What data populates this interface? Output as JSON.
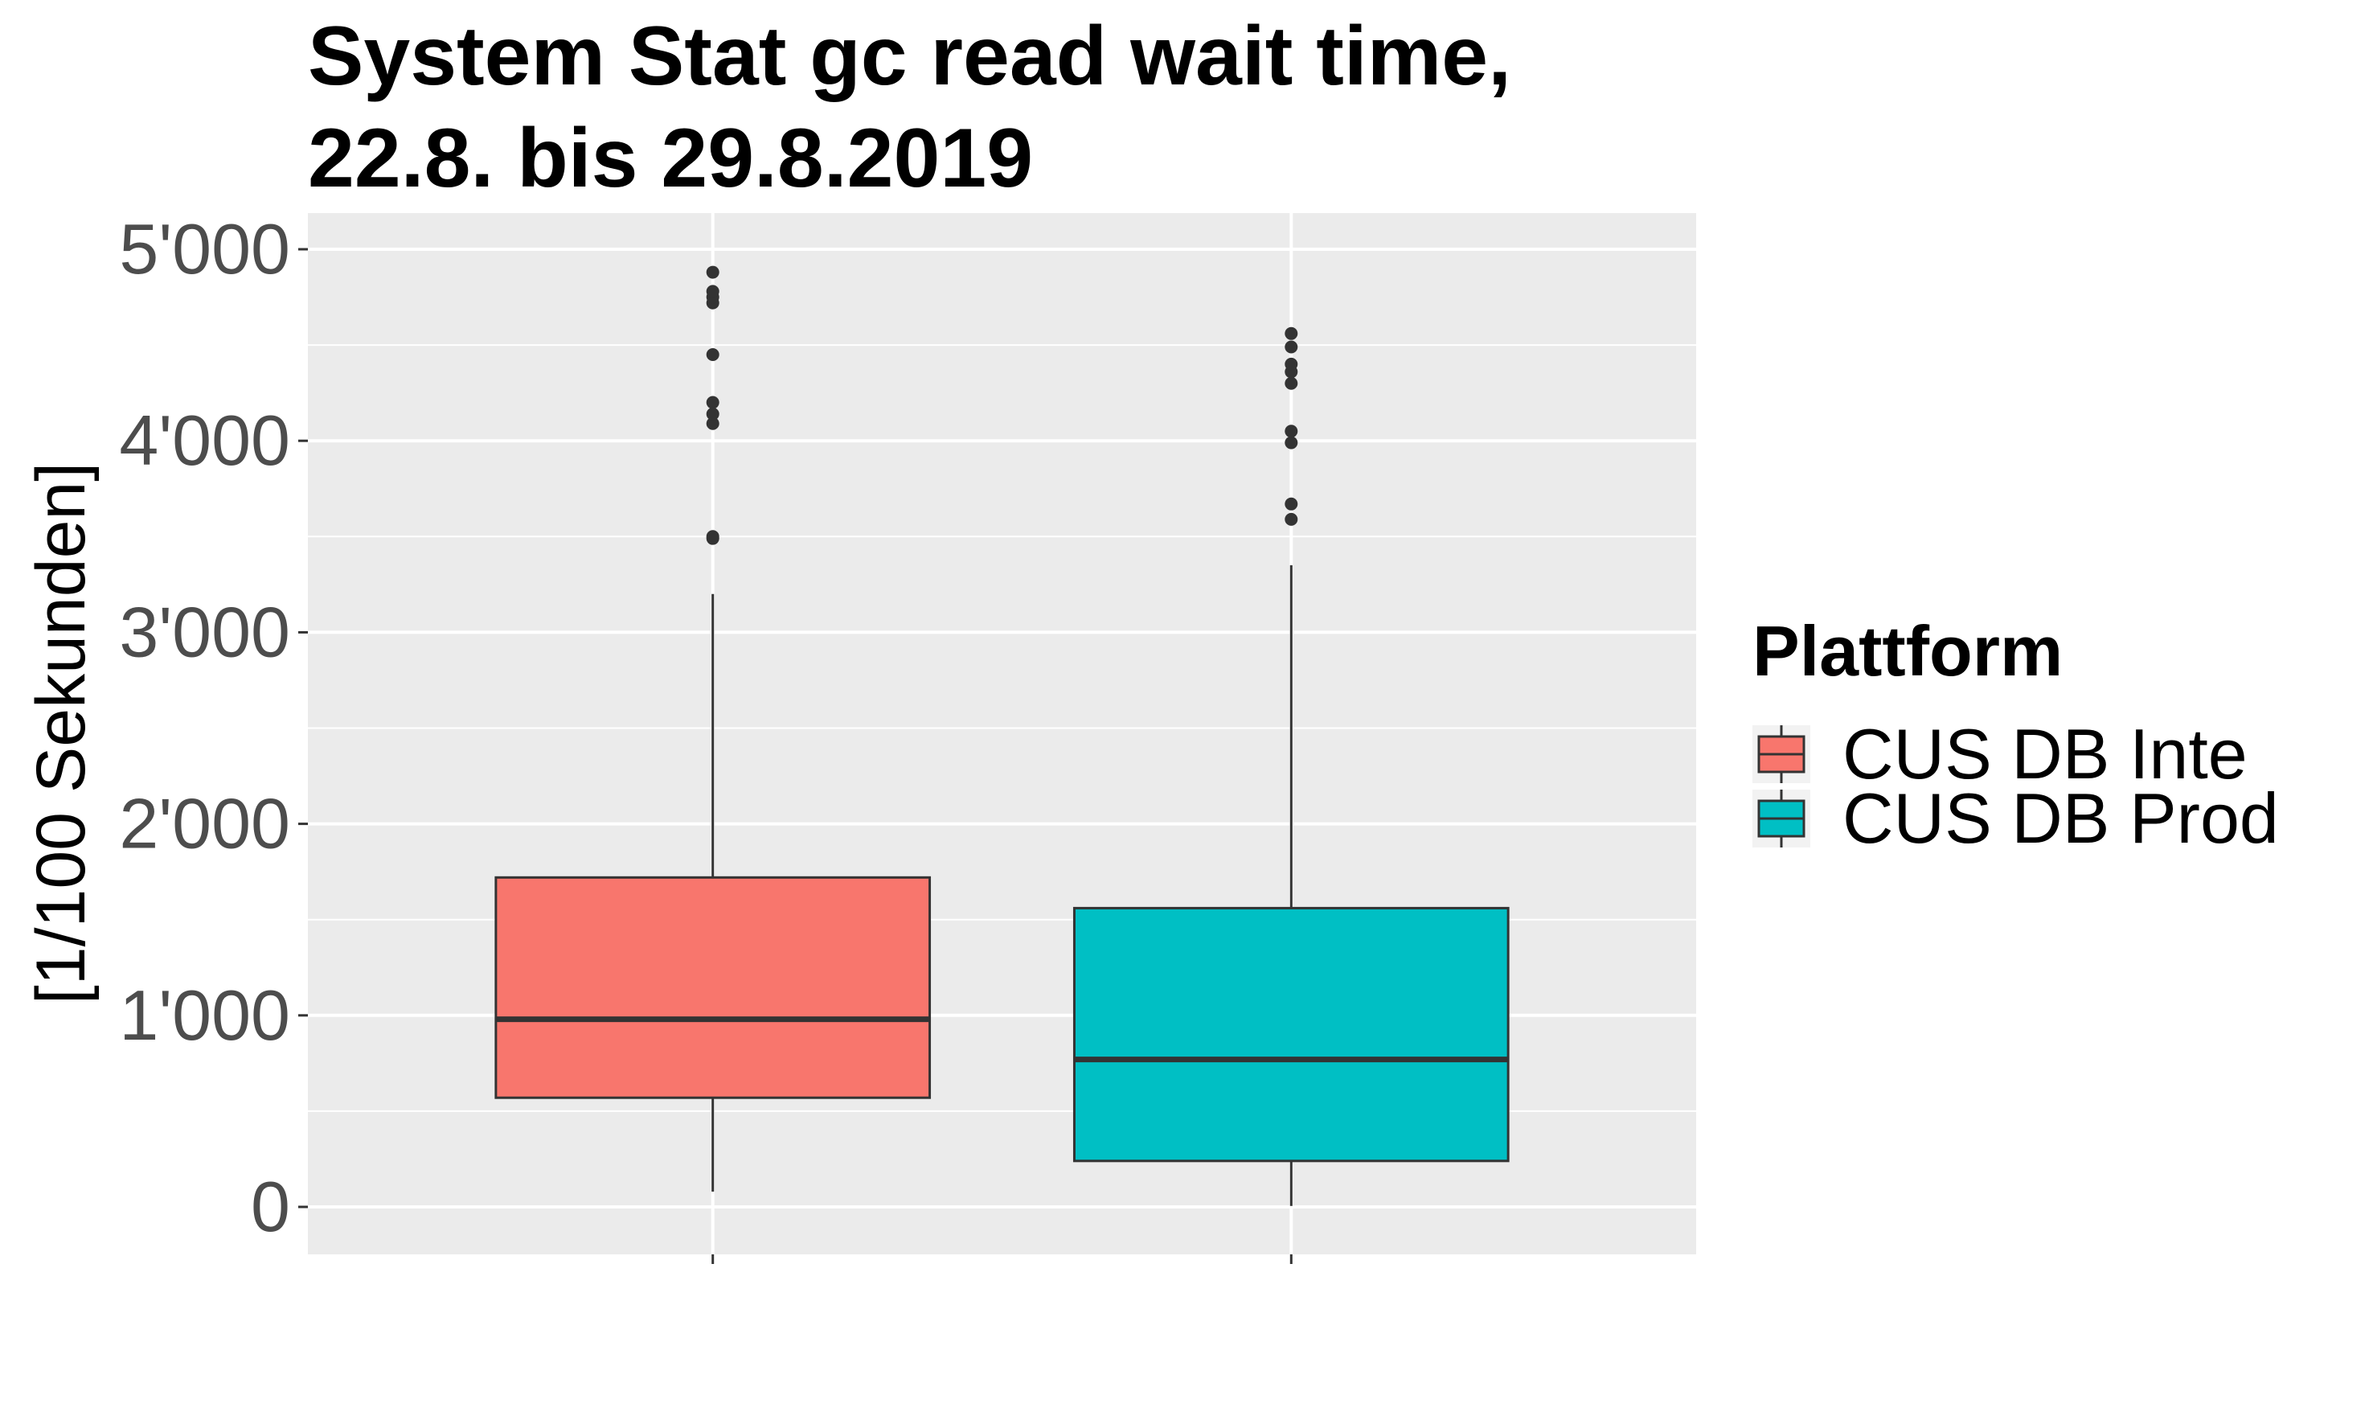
{
  "chart_data": {
    "type": "box",
    "title_lines": [
      "System Stat gc read wait time,",
      "22.8. bis 29.8.2019"
    ],
    "xlabel": "",
    "ylabel": "[1/100 Sekunden]",
    "ylim": [
      -250,
      5200
    ],
    "y_ticks": [
      0,
      1000,
      2000,
      3000,
      4000,
      5000
    ],
    "y_tick_labels": [
      "0",
      "1'000",
      "2'000",
      "3'000",
      "4'000",
      "5'000"
    ],
    "grid": true,
    "legend": {
      "title": "Plattform",
      "position": "right",
      "entries": [
        "CUS DB Inte",
        "CUS DB Prod"
      ]
    },
    "series": [
      {
        "name": "CUS DB Inte",
        "color": "#F8766D",
        "whisker_low": 80,
        "q1": 570,
        "median": 980,
        "q3": 1720,
        "whisker_high": 3200,
        "outliers": [
          3490,
          3500,
          4090,
          4140,
          4200,
          4450,
          4720,
          4750,
          4780,
          4880
        ]
      },
      {
        "name": "CUS DB Prod",
        "color": "#00BFC4",
        "whisker_low": 5,
        "q1": 240,
        "median": 770,
        "q3": 1560,
        "whisker_high": 3350,
        "outliers": [
          3590,
          3670,
          3990,
          4050,
          4300,
          4360,
          4400,
          4490,
          4560
        ]
      }
    ]
  }
}
